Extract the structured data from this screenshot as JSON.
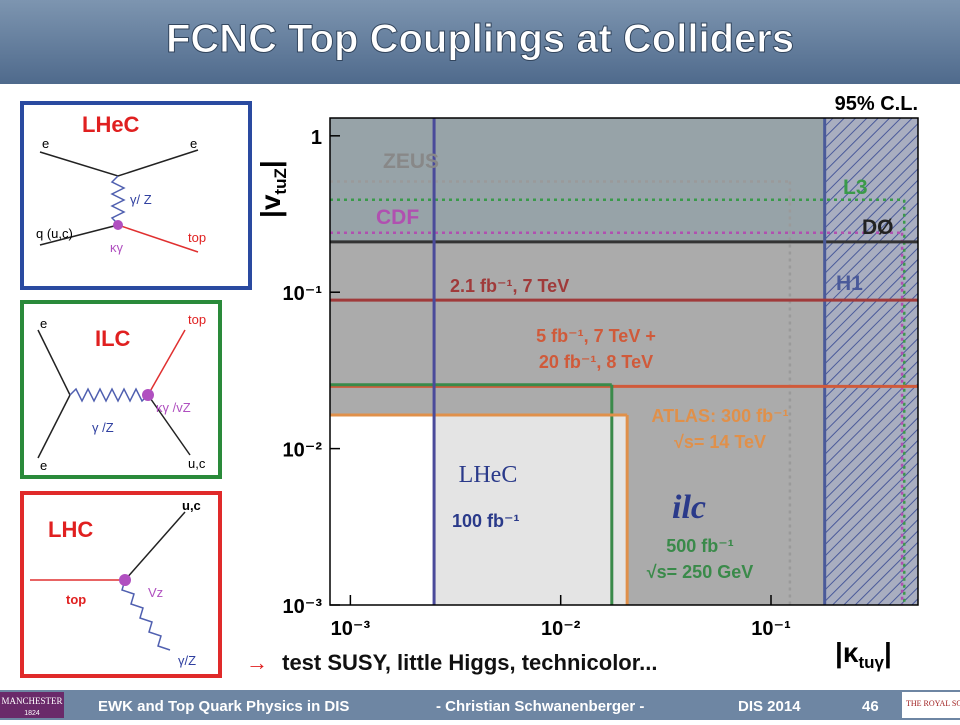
{
  "header": {
    "title": "FCNC Top Couplings at Colliders"
  },
  "diagrams": [
    {
      "title": "LHeC",
      "labels": [
        "e",
        "e",
        "γ/ Z",
        "q (u,c)",
        "top",
        "κγ"
      ]
    },
    {
      "title": "ILC",
      "labels": [
        "e",
        "top",
        "κγ /vZ",
        "γ /Z",
        "e",
        "u,c"
      ]
    },
    {
      "title": "LHC",
      "labels": [
        "u,c",
        "top",
        "Vz",
        "γ/Z"
      ]
    }
  ],
  "chart_data": {
    "type": "exclusion",
    "cl_label": "95% C.L.",
    "y_label": [
      "|v",
      "tuZ",
      "|"
    ],
    "x_label": [
      "|κ",
      "tuγ",
      "|"
    ],
    "log_x": true,
    "log_y": true,
    "xlim": [
      0.0008,
      0.5
    ],
    "ylim": [
      0.001,
      1.3
    ],
    "xticks": [
      {
        "value": 0.001,
        "label": "10⁻³"
      },
      {
        "value": 0.01,
        "label": "10⁻²"
      },
      {
        "value": 0.1,
        "label": "10⁻¹"
      }
    ],
    "yticks": [
      {
        "value": 0.001,
        "label": "10⁻³"
      },
      {
        "value": 0.01,
        "label": "10⁻²"
      },
      {
        "value": 0.1,
        "label": "10⁻¹"
      },
      1
    ],
    "limits": [
      {
        "label": [
          "ZEUS"
        ],
        "kind": "box",
        "x": 0.123,
        "y": 0.51,
        "color": "#9a9a9a",
        "style": "dotted"
      },
      {
        "label": [
          "L3"
        ],
        "kind": "box",
        "x": 0.43,
        "y": 0.39,
        "color": "#3a9a4a",
        "style": "dotted"
      },
      {
        "label": [
          "CDF"
        ],
        "kind": "box",
        "x": 0.42,
        "y": 0.24,
        "color": "#b050b0",
        "style": "dotted"
      },
      {
        "label": [
          "DØ"
        ],
        "kind": "y",
        "y": 0.21,
        "color": "#333333",
        "style": "solid"
      },
      {
        "label": [
          "H1"
        ],
        "kind": "x",
        "x": 0.18,
        "color": "#4a5a9a",
        "style": "solid",
        "hatch": true
      },
      {
        "label": [
          "2.1 fb⁻¹, 7 TeV"
        ],
        "kind": "y",
        "y": 0.089,
        "color": "#a03a3a",
        "style": "solid"
      },
      {
        "label": [
          "5 fb⁻¹, 7 TeV +",
          "20 fb⁻¹, 8 TeV"
        ],
        "kind": "y",
        "y": 0.025,
        "color": "#d05a3a",
        "style": "solid"
      },
      {
        "label": [
          "500 fb⁻¹",
          "√s= 250 GeV"
        ],
        "kind": "box",
        "x": 0.0175,
        "y": 0.0256,
        "color": "#3a8a4a",
        "style": "solid",
        "logo": "ilc"
      },
      {
        "label": [
          "ATLAS: 300 fb⁻¹",
          "√s= 14 TeV"
        ],
        "kind": "box",
        "x": 0.0207,
        "y": 0.0164,
        "color": "#e0904a",
        "style": "solid"
      },
      {
        "label": [
          "100 fb⁻¹"
        ],
        "kind": "x",
        "x": 0.0025,
        "color": "#4a4a9a",
        "style": "solid",
        "logo": "LHeC"
      }
    ]
  },
  "conclusion": {
    "arrow": "→",
    "text": "test SUSY, little Higgs, technicolor..."
  },
  "footer": {
    "logo": "MANCHESTER",
    "logo_year": "1824",
    "talk": "EWK and Top Quark Physics in DIS",
    "author": "- Christian Schwanenberger -",
    "conference": "DIS 2014",
    "page": "46",
    "society": "THE ROYAL SOCIETY"
  }
}
